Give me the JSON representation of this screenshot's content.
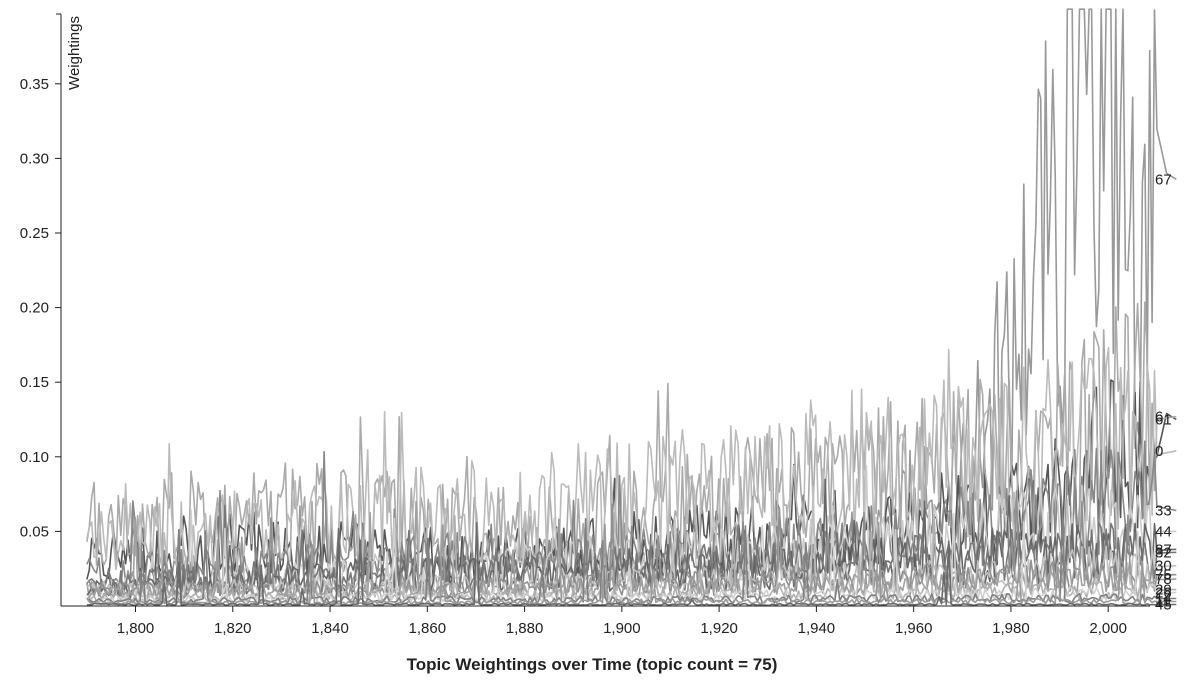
{
  "chart_data": {
    "type": "line",
    "title": "Topic Weightings over Time (topic count = 75)",
    "xlabel": "",
    "ylabel": "Weightings",
    "xlim": [
      1790,
      2014
    ],
    "ylim": [
      0,
      0.4
    ],
    "x_ticks": [
      "1,800",
      "1,820",
      "1,840",
      "1,860",
      "1,880",
      "1,900",
      "1,920",
      "1,940",
      "1,960",
      "1,980",
      "2,000"
    ],
    "y_ticks": [
      "0.05",
      "0.10",
      "0.15",
      "0.20",
      "0.25",
      "0.30",
      "0.35"
    ],
    "grid": false,
    "legend": "none",
    "topic_count": 75,
    "series": [
      {
        "name": "67",
        "color": "#999999",
        "points": [
          [
            1790,
            0.01
          ],
          [
            1810,
            0.02
          ],
          [
            1830,
            0.015
          ],
          [
            1850,
            0.02
          ],
          [
            1870,
            0.02
          ],
          [
            1890,
            0.03
          ],
          [
            1910,
            0.02
          ],
          [
            1930,
            0.03
          ],
          [
            1950,
            0.04
          ],
          [
            1960,
            0.06
          ],
          [
            1970,
            0.08
          ],
          [
            1975,
            0.12
          ],
          [
            1980,
            0.15
          ],
          [
            1983,
            0.2
          ],
          [
            1986,
            0.25
          ],
          [
            1988,
            0.23
          ],
          [
            1990,
            0.21
          ],
          [
            1992,
            0.32
          ],
          [
            1994,
            0.36
          ],
          [
            1996,
            0.38
          ],
          [
            1998,
            0.35
          ],
          [
            2000,
            0.33
          ],
          [
            2002,
            0.335
          ],
          [
            2004,
            0.25
          ],
          [
            2006,
            0.21
          ],
          [
            2008,
            0.2
          ],
          [
            2010,
            0.32
          ],
          [
            2012,
            0.29
          ],
          [
            2014,
            0.286
          ]
        ]
      },
      {
        "name": "61",
        "color": "#555555",
        "points": [
          [
            1790,
            0.03
          ],
          [
            1830,
            0.04
          ],
          [
            1870,
            0.03
          ],
          [
            1910,
            0.04
          ],
          [
            1950,
            0.05
          ],
          [
            1990,
            0.06
          ],
          [
            2000,
            0.1
          ],
          [
            2005,
            0.09
          ],
          [
            2010,
            0.1
          ],
          [
            2012,
            0.129
          ],
          [
            2014,
            0.125
          ]
        ]
      },
      {
        "name": "6",
        "color": "#aaaaaa",
        "points": [
          [
            1790,
            0.05
          ],
          [
            1830,
            0.06
          ],
          [
            1870,
            0.05
          ],
          [
            1910,
            0.06
          ],
          [
            1950,
            0.08
          ],
          [
            1990,
            0.1
          ],
          [
            2000,
            0.12
          ],
          [
            2005,
            0.13
          ],
          [
            2010,
            0.125
          ],
          [
            2014,
            0.127
          ]
        ]
      },
      {
        "name": "0",
        "color": "#bbbbbb",
        "points": [
          [
            1790,
            0.04
          ],
          [
            1830,
            0.05
          ],
          [
            1870,
            0.06
          ],
          [
            1910,
            0.07
          ],
          [
            1950,
            0.09
          ],
          [
            1990,
            0.1
          ],
          [
            2000,
            0.105
          ],
          [
            2008,
            0.1
          ],
          [
            2014,
            0.104
          ]
        ]
      },
      {
        "name": "33",
        "color": "#888888",
        "points": [
          [
            1790,
            0.02
          ],
          [
            1840,
            0.03
          ],
          [
            1900,
            0.03
          ],
          [
            1950,
            0.04
          ],
          [
            1990,
            0.06
          ],
          [
            2005,
            0.07
          ],
          [
            2014,
            0.064
          ]
        ]
      },
      {
        "name": "44",
        "color": "#cccccc",
        "points": [
          [
            1790,
            0.01
          ],
          [
            1840,
            0.02
          ],
          [
            1900,
            0.03
          ],
          [
            1960,
            0.04
          ],
          [
            1990,
            0.05
          ],
          [
            2005,
            0.05
          ],
          [
            2014,
            0.05
          ]
        ]
      },
      {
        "name": "87",
        "color": "#666666",
        "points": [
          [
            1790,
            0.01
          ],
          [
            1850,
            0.02
          ],
          [
            1910,
            0.02
          ],
          [
            1970,
            0.03
          ],
          [
            2000,
            0.035
          ],
          [
            2014,
            0.038
          ]
        ]
      },
      {
        "name": "32",
        "color": "#777777",
        "points": [
          [
            1790,
            0.015
          ],
          [
            1850,
            0.02
          ],
          [
            1910,
            0.025
          ],
          [
            1970,
            0.03
          ],
          [
            2000,
            0.034
          ],
          [
            2014,
            0.036
          ]
        ]
      },
      {
        "name": "30",
        "color": "#c0c0c0",
        "points": [
          [
            1790,
            0.01
          ],
          [
            1850,
            0.012
          ],
          [
            1910,
            0.015
          ],
          [
            1970,
            0.02
          ],
          [
            2000,
            0.025
          ],
          [
            2014,
            0.027
          ]
        ]
      },
      {
        "name": "75",
        "color": "#909090",
        "points": [
          [
            1790,
            0.01
          ],
          [
            1850,
            0.01
          ],
          [
            1910,
            0.015
          ],
          [
            1970,
            0.018
          ],
          [
            2000,
            0.02
          ],
          [
            2014,
            0.021
          ]
        ]
      },
      {
        "name": "78",
        "color": "#a0a0a0",
        "points": [
          [
            1790,
            0.008
          ],
          [
            1850,
            0.01
          ],
          [
            1910,
            0.012
          ],
          [
            1970,
            0.015
          ],
          [
            2000,
            0.017
          ],
          [
            2014,
            0.018
          ]
        ]
      },
      {
        "name": "29",
        "color": "#b0b0b0",
        "points": [
          [
            1790,
            0.005
          ],
          [
            1850,
            0.006
          ],
          [
            1910,
            0.008
          ],
          [
            1970,
            0.009
          ],
          [
            2000,
            0.01
          ],
          [
            2014,
            0.011
          ]
        ]
      },
      {
        "name": "26",
        "color": "#d0d0d0",
        "points": [
          [
            1790,
            0.004
          ],
          [
            1850,
            0.005
          ],
          [
            1910,
            0.006
          ],
          [
            1970,
            0.007
          ],
          [
            2000,
            0.008
          ],
          [
            2014,
            0.009
          ]
        ]
      },
      {
        "name": "14",
        "color": "#808080",
        "points": [
          [
            1790,
            0.003
          ],
          [
            1850,
            0.004
          ],
          [
            1910,
            0.004
          ],
          [
            1970,
            0.005
          ],
          [
            2000,
            0.005
          ],
          [
            2014,
            0.005
          ]
        ]
      },
      {
        "name": "11",
        "color": "#9a9a9a",
        "points": [
          [
            1790,
            0.002
          ],
          [
            1850,
            0.002
          ],
          [
            1910,
            0.003
          ],
          [
            1970,
            0.003
          ],
          [
            2000,
            0.003
          ],
          [
            2014,
            0.003
          ]
        ]
      },
      {
        "name": "45",
        "color": "#6a6a6a",
        "points": [
          [
            1790,
            0.001
          ],
          [
            1850,
            0.001
          ],
          [
            1910,
            0.001
          ],
          [
            1970,
            0.001
          ],
          [
            2000,
            0.001
          ],
          [
            2014,
            0.001
          ]
        ]
      }
    ]
  }
}
